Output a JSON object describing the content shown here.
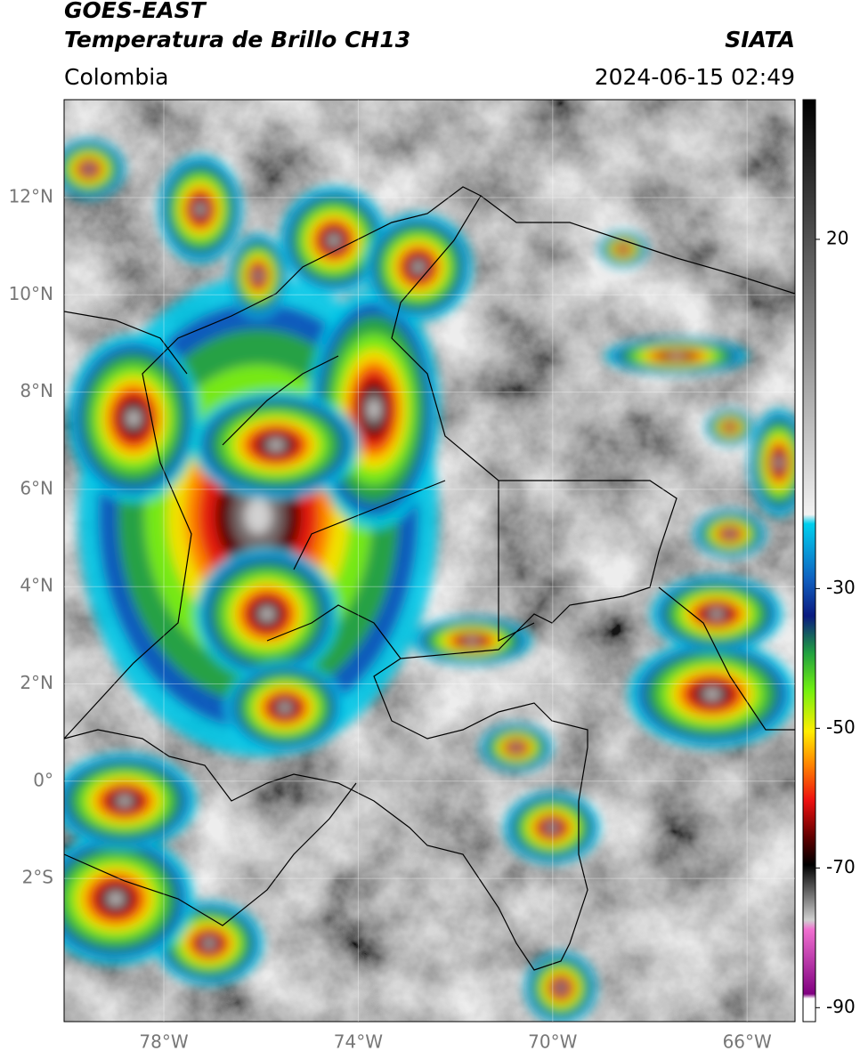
{
  "header": {
    "title": "GOES-EAST",
    "subtitle": "Temperatura de Brillo CH13",
    "region": "Colombia",
    "source": "SIATA",
    "datetime": "2024-06-15 02:49"
  },
  "map": {
    "lat_labels": [
      "12°N",
      "10°N",
      "8°N",
      "6°N",
      "4°N",
      "2°N",
      "0°",
      "2°S"
    ],
    "lon_labels": [
      "78°W",
      "74°W",
      "70°W",
      "66°W"
    ]
  },
  "colorbar": {
    "range": [
      -92,
      40
    ],
    "ticks": [
      20,
      -30,
      -50,
      -70,
      -90
    ]
  }
}
